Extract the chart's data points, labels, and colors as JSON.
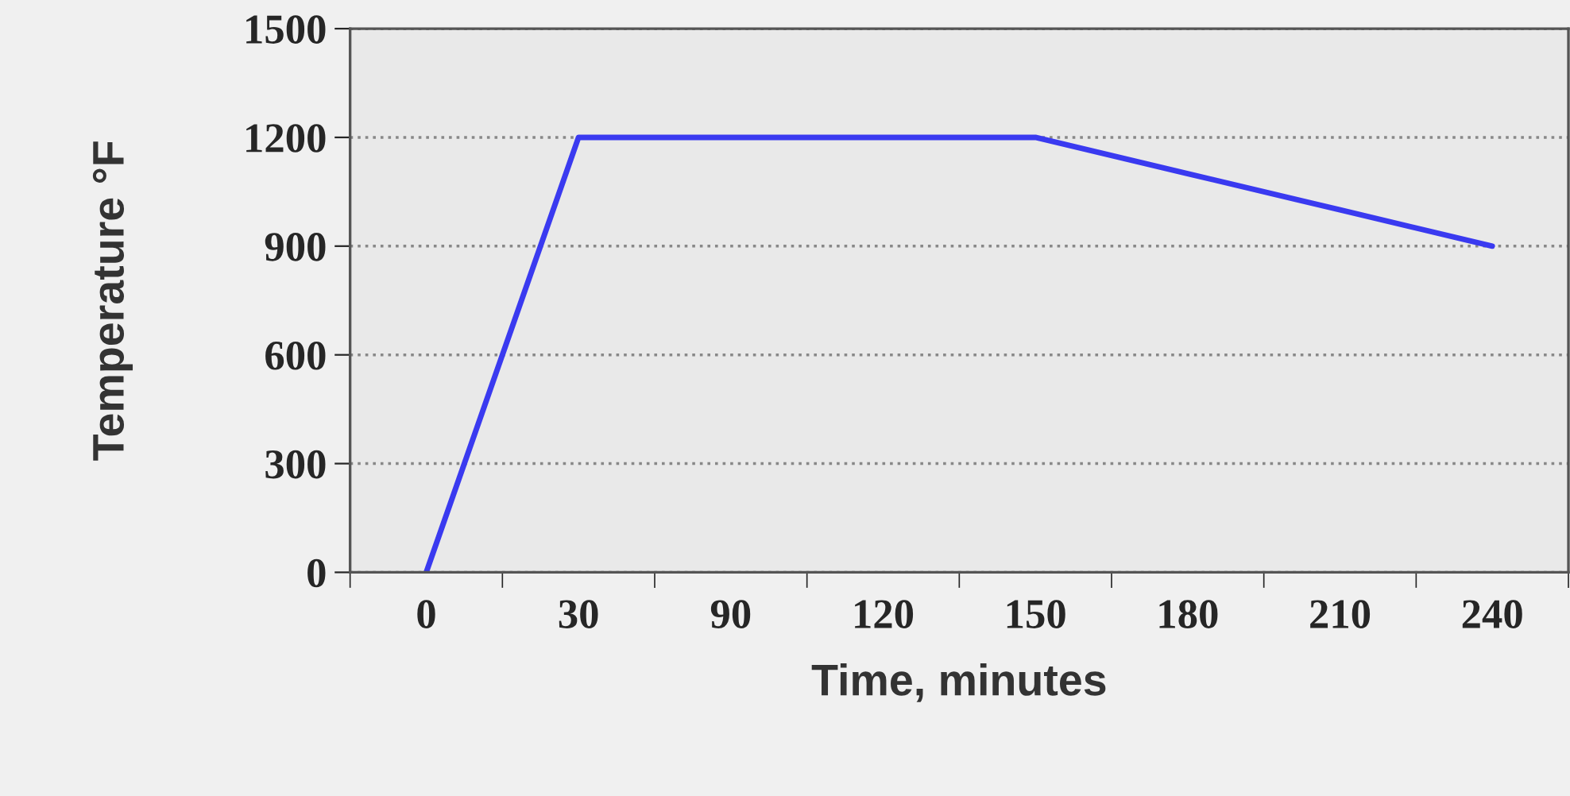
{
  "chart_data": {
    "type": "line",
    "xlabel": "Time, minutes",
    "ylabel": "Temperature °F",
    "categories": [
      "0",
      "30",
      "90",
      "120",
      "150",
      "180",
      "210",
      "240"
    ],
    "series": [
      {
        "color": "#3a3af0",
        "values": [
          0,
          1200,
          1200,
          1200,
          1200,
          1100,
          1000,
          900
        ]
      }
    ],
    "ylim": [
      0,
      1500
    ],
    "yticks": [
      0,
      300,
      600,
      900,
      1200,
      1500
    ],
    "grid": "y",
    "marker": "none",
    "line_style": "solid"
  }
}
